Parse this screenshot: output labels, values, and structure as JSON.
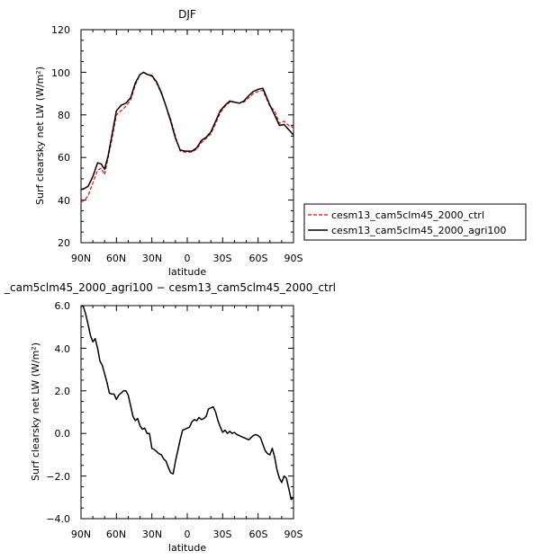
{
  "chart_data": [
    {
      "type": "line",
      "title": "DJF",
      "xlabel": "latitude",
      "ylabel": "Surf clearsky net LW (W/m²)",
      "xlim": [
        90,
        -90
      ],
      "ylim": [
        20,
        120
      ],
      "yticks": [
        "20",
        "40",
        "60",
        "80",
        "100",
        "120"
      ],
      "xtick_values": [
        90,
        60,
        30,
        0,
        -30,
        -60,
        -90
      ],
      "xticks": [
        "90N",
        "60N",
        "30N",
        "0",
        "30S",
        "60S",
        "90S"
      ],
      "legend": "right",
      "series": [
        {
          "name": "cesm13_cam5clm45_2000_ctrl",
          "color": "#ff0000",
          "dash": "dashed",
          "x": [
            90,
            87,
            84,
            80,
            76,
            73,
            70,
            67,
            64,
            60,
            56,
            52,
            48,
            44,
            40,
            37,
            34,
            30,
            26,
            22,
            18,
            14,
            10,
            6,
            2,
            0,
            -4,
            -8,
            -12,
            -16,
            -20,
            -24,
            -28,
            -32,
            -36,
            -40,
            -44,
            -48,
            -52,
            -56,
            -60,
            -64,
            -66,
            -70,
            -74,
            -78,
            -82,
            -86,
            -90
          ],
          "y": [
            39,
            40,
            42,
            48,
            54,
            55,
            52,
            60,
            68,
            80,
            82,
            84,
            87,
            94,
            99,
            100,
            99,
            98,
            95,
            90,
            84,
            78,
            70,
            63,
            62.5,
            62.5,
            62.5,
            64,
            67,
            69,
            71,
            76,
            81,
            84,
            86,
            86,
            85.5,
            86,
            88,
            90,
            91,
            91.5,
            89,
            84,
            82,
            76,
            77,
            75,
            74
          ]
        },
        {
          "name": "cesm13_cam5clm45_2000_agri100",
          "color": "#000000",
          "dash": "solid",
          "x": [
            90,
            87,
            84,
            80,
            76,
            73,
            70,
            67,
            64,
            60,
            56,
            52,
            48,
            44,
            40,
            37,
            34,
            30,
            26,
            22,
            18,
            14,
            10,
            6,
            2,
            0,
            -4,
            -8,
            -12,
            -16,
            -20,
            -24,
            -28,
            -32,
            -36,
            -40,
            -44,
            -48,
            -52,
            -56,
            -60,
            -64,
            -66,
            -70,
            -74,
            -78,
            -82,
            -86,
            -90
          ],
          "y": [
            45,
            45.5,
            46.5,
            51,
            57.5,
            57,
            54.5,
            61,
            70,
            82,
            84.5,
            85.5,
            88,
            95,
            99,
            100,
            99,
            98.5,
            95.5,
            90.5,
            84,
            77,
            69,
            63.5,
            63,
            63,
            63,
            64.5,
            68,
            69.5,
            72,
            77,
            82,
            84.5,
            86.5,
            86,
            85.5,
            86.5,
            89,
            91,
            92,
            92.5,
            90,
            84.5,
            80,
            75,
            75.5,
            73,
            70.5
          ]
        }
      ]
    },
    {
      "type": "line",
      "title": "_cam5clm45_2000_agri100 − cesm13_cam5clm45_2000_ctrl",
      "xlabel": "latitude",
      "ylabel": "Surf clearsky net LW (W/m²)",
      "xlim": [
        90,
        -90
      ],
      "ylim": [
        -4,
        6
      ],
      "yticks": [
        "−4.0",
        "−2.0",
        "0.0",
        "2.0",
        "4.0",
        "6.0"
      ],
      "xtick_values": [
        90,
        60,
        30,
        0,
        -30,
        -60,
        -90
      ],
      "xticks": [
        "90N",
        "60N",
        "30N",
        "0",
        "30S",
        "60S",
        "90S"
      ],
      "series": [
        {
          "name": "",
          "color": "#000000",
          "dash": "solid",
          "x": [
            90,
            88,
            86,
            84,
            82,
            80,
            78,
            76,
            74,
            72,
            70,
            68,
            66,
            64,
            62,
            60,
            58,
            56,
            54,
            52,
            50,
            48,
            46,
            44,
            42,
            40,
            38,
            36,
            34,
            32,
            30,
            28,
            26,
            24,
            22,
            20,
            18,
            16,
            14,
            12,
            10,
            8,
            6,
            4,
            2,
            0,
            -2,
            -4,
            -6,
            -8,
            -10,
            -12,
            -14,
            -16,
            -18,
            -20,
            -22,
            -24,
            -26,
            -28,
            -30,
            -32,
            -34,
            -36,
            -38,
            -40,
            -42,
            -44,
            -46,
            -48,
            -50,
            -52,
            -54,
            -56,
            -58,
            -60,
            -62,
            -64,
            -66,
            -68,
            -70,
            -72,
            -74,
            -76,
            -78,
            -80,
            -82,
            -84,
            -86,
            -88,
            -90
          ],
          "y": [
            6.0,
            5.95,
            5.6,
            5.1,
            4.6,
            4.3,
            4.45,
            4.0,
            3.4,
            3.2,
            2.8,
            2.4,
            1.9,
            1.85,
            1.85,
            1.6,
            1.8,
            1.9,
            2.0,
            2.0,
            1.8,
            1.3,
            0.8,
            0.6,
            0.7,
            0.35,
            0.2,
            0.25,
            0.0,
            0.0,
            -0.7,
            -0.75,
            -0.85,
            -0.95,
            -1.0,
            -1.2,
            -1.3,
            -1.6,
            -1.85,
            -1.9,
            -1.3,
            -0.8,
            -0.3,
            0.15,
            0.2,
            0.25,
            0.3,
            0.55,
            0.65,
            0.6,
            0.75,
            0.65,
            0.7,
            0.8,
            1.15,
            1.2,
            1.25,
            1.0,
            0.6,
            0.3,
            0.05,
            0.15,
            0.0,
            0.1,
            0.0,
            0.05,
            -0.05,
            -0.1,
            -0.15,
            -0.2,
            -0.25,
            -0.3,
            -0.2,
            -0.1,
            -0.05,
            -0.1,
            -0.2,
            -0.5,
            -0.8,
            -0.95,
            -1.0,
            -0.7,
            -1.1,
            -1.7,
            -2.1,
            -2.3,
            -2.0,
            -2.1,
            -2.6,
            -3.1,
            -3.0
          ]
        }
      ]
    }
  ]
}
